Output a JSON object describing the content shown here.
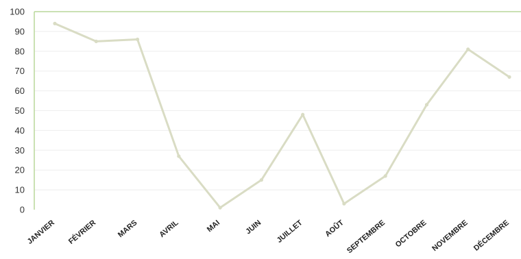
{
  "chart_data": {
    "type": "line",
    "categories": [
      "JANVIER",
      "FÉVRIER",
      "MARS",
      "AVRIL",
      "MAI",
      "JUIN",
      "JUILLET",
      "AOÛT",
      "SEPTEMBRE",
      "OCTOBRE",
      "NOVEMBRE",
      "DÉCEMBRE"
    ],
    "series": [
      {
        "values": [
          94,
          85,
          86,
          27,
          1,
          15,
          48,
          3,
          17,
          53,
          81,
          67
        ],
        "color": "#d9dcc4"
      }
    ],
    "yticks": [
      "0",
      "10",
      "20",
      "30",
      "40",
      "50",
      "60",
      "70",
      "80",
      "90",
      "100"
    ],
    "ylim": [
      0,
      100
    ],
    "grid": true,
    "axis_color": "#b9d79a",
    "grid_color": "#eeeeee"
  }
}
